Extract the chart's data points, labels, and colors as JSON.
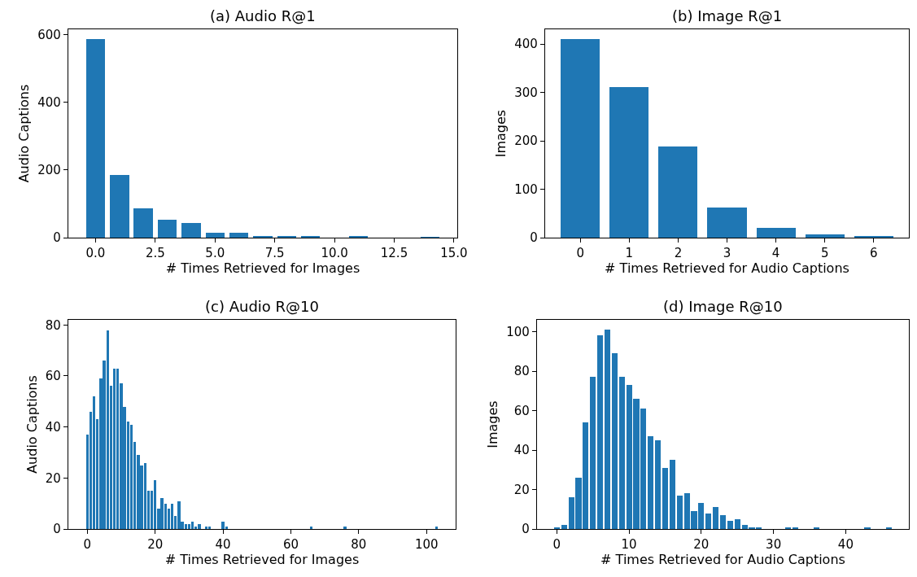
{
  "chart_data": [
    {
      "type": "bar",
      "title": "(a) Audio R@1",
      "xlabel": "# Times Retrieved for Images",
      "ylabel": "Audio Captions",
      "color": "#1f77b4",
      "x": [
        0,
        1,
        2,
        3,
        4,
        5,
        6,
        7,
        8,
        9,
        10,
        11,
        12,
        13,
        14
      ],
      "values": [
        587,
        186,
        86,
        52,
        43,
        14,
        14,
        5,
        3,
        3,
        0,
        3,
        0,
        0,
        1
      ],
      "xlim": [
        -1.14,
        15.14
      ],
      "xticks": [
        {
          "value": 0,
          "label": "0.0"
        },
        {
          "value": 2.5,
          "label": "2.5"
        },
        {
          "value": 5,
          "label": "5.0"
        },
        {
          "value": 7.5,
          "label": "7.5"
        },
        {
          "value": 10,
          "label": "10.0"
        },
        {
          "value": 12.5,
          "label": "12.5"
        },
        {
          "value": 15,
          "label": "15.0"
        }
      ],
      "ylim": [
        0,
        616
      ],
      "yticks": [
        0,
        200,
        400,
        600
      ]
    },
    {
      "type": "bar",
      "title": "(b) Image R@1",
      "xlabel": "# Times Retrieved for Audio Captions",
      "ylabel": "Images",
      "color": "#1f77b4",
      "x": [
        0,
        1,
        2,
        3,
        4,
        5,
        6
      ],
      "values": [
        410,
        311,
        188,
        62,
        21,
        6,
        3
      ],
      "xlim": [
        -0.72,
        6.72
      ],
      "xticks": [
        0,
        1,
        2,
        3,
        4,
        5,
        6
      ],
      "ylim": [
        0,
        430.5
      ],
      "yticks": [
        0,
        100,
        200,
        300,
        400
      ]
    },
    {
      "type": "bar",
      "title": "(c) Audio R@10",
      "xlabel": "# Times Retrieved for Images",
      "ylabel": "Audio Captions",
      "color": "#1f77b4",
      "x": [
        0,
        1,
        2,
        3,
        4,
        5,
        6,
        7,
        8,
        9,
        10,
        11,
        12,
        13,
        14,
        15,
        16,
        17,
        18,
        19,
        20,
        21,
        22,
        23,
        24,
        25,
        26,
        27,
        28,
        29,
        30,
        31,
        32,
        33,
        34,
        35,
        36,
        37,
        38,
        39,
        40,
        41,
        66,
        76,
        103
      ],
      "values": [
        37,
        46,
        52,
        43,
        59,
        66,
        78,
        56,
        63,
        63,
        57,
        48,
        42,
        41,
        34,
        29,
        25,
        26,
        15,
        15,
        19,
        8,
        12,
        10,
        8,
        10,
        5,
        11,
        3,
        2,
        2,
        3,
        1,
        2,
        0,
        1,
        1,
        0,
        0,
        0,
        3,
        1,
        1,
        1,
        1
      ],
      "xlim": [
        -5.59,
        108.59
      ],
      "xticks": [
        0,
        20,
        40,
        60,
        80,
        100
      ],
      "ylim": [
        0,
        82
      ],
      "yticks": [
        0,
        20,
        40,
        60,
        80
      ]
    },
    {
      "type": "bar",
      "title": "(d) Image R@10",
      "xlabel": "# Times Retrieved for Audio Captions",
      "ylabel": "Images",
      "color": "#1f77b4",
      "x": [
        0,
        1,
        2,
        3,
        4,
        5,
        6,
        7,
        8,
        9,
        10,
        11,
        12,
        13,
        14,
        15,
        16,
        17,
        18,
        19,
        20,
        21,
        22,
        23,
        24,
        25,
        26,
        27,
        28,
        32,
        33,
        36,
        43,
        46
      ],
      "values": [
        1,
        2,
        16,
        26,
        54,
        77,
        98,
        101,
        89,
        77,
        73,
        66,
        61,
        47,
        45,
        31,
        35,
        17,
        18,
        9,
        13,
        8,
        11,
        7,
        4,
        5,
        2,
        1,
        1,
        1,
        1,
        1,
        1,
        1
      ],
      "xlim": [
        -2.74,
        48.74
      ],
      "xticks": [
        0,
        10,
        20,
        30,
        40
      ],
      "ylim": [
        0,
        106
      ],
      "yticks": [
        0,
        20,
        40,
        60,
        80,
        100
      ]
    }
  ]
}
